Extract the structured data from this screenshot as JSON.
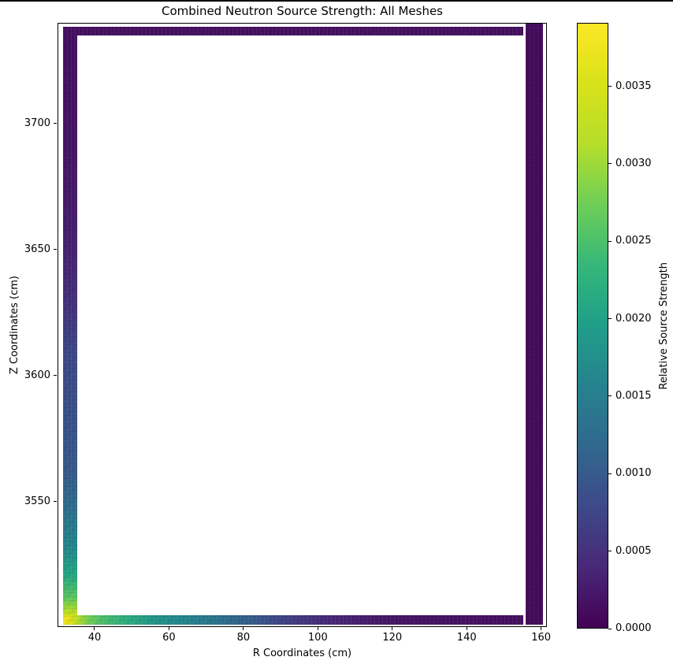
{
  "title": "Combined Neutron Source Strength: All Meshes",
  "x_axis": {
    "label": "R Coordinates (cm)",
    "ticks": [
      "40",
      "60",
      "80",
      "100",
      "120",
      "140",
      "160"
    ]
  },
  "y_axis": {
    "label": "Z Coordinates (cm)",
    "ticks": [
      "3700",
      "3650",
      "3600",
      "3550"
    ]
  },
  "colorbar": {
    "label": "Relative Source Strength",
    "ticks": [
      "0.0035",
      "0.0030",
      "0.0025",
      "0.0020",
      "0.0015",
      "0.0010",
      "0.0005",
      "0.0000"
    ]
  },
  "chart_data": {
    "type": "heatmap",
    "subtype": "pcolormesh of mesh cells forming a hollow rectangular frame on white background",
    "title": "Combined Neutron Source Strength: All Meshes",
    "xlabel": "R Coordinates (cm)",
    "ylabel": "Z Coordinates (cm)",
    "xlim": [
      30.05,
      161.55
    ],
    "ylim": [
      3500.3,
      3740.0
    ],
    "x_ticks": [
      40,
      60,
      80,
      100,
      120,
      140,
      160
    ],
    "y_ticks": [
      3700,
      3650,
      3600,
      3550
    ],
    "colormap": "viridis",
    "grid": false,
    "colorbar": {
      "label": "Relative Source Strength",
      "vmin": 0.0,
      "vmax": 0.00391,
      "ticks": [
        0.0035,
        0.003,
        0.0025,
        0.002,
        0.0015,
        0.001,
        0.0005,
        0.0
      ]
    },
    "regions": [
      {
        "name": "left-wall",
        "r": [
          31.53,
          35.34
        ],
        "z": [
          3501.2,
          3738.5
        ],
        "gradient_axis": "z",
        "profile": {
          "z": [
            3501.5,
            3504.0,
            3507.0,
            3512.0,
            3521.0,
            3533.0,
            3549.0,
            3562.0,
            3583.0,
            3608.0,
            3630.0,
            3655.0,
            3690.0,
            3715.0,
            3738.0
          ],
          "value": [
            0.0038,
            0.0035,
            0.0031,
            0.0026,
            0.0021,
            0.0016,
            0.00125,
            0.001,
            0.0009,
            0.0008,
            0.0005,
            0.0003,
            0.0002,
            0.00017,
            0.00015
          ]
        }
      },
      {
        "name": "bottom-wall",
        "r": [
          31.53,
          155.3
        ],
        "z": [
          3501.2,
          3505.0
        ],
        "gradient_axis": "r",
        "profile": {
          "r": [
            31.8,
            33.5,
            35.0,
            38.0,
            42.0,
            48.5,
            57.0,
            65.0,
            74.0,
            82.0,
            91.0,
            103.0,
            120.0,
            140.0,
            155.0
          ],
          "value": [
            0.0038,
            0.0036,
            0.0033,
            0.0028,
            0.0025,
            0.0022,
            0.0018,
            0.0016,
            0.0013,
            0.00105,
            0.0007,
            0.0004,
            0.0002,
            0.00017,
            0.00015
          ]
        }
      },
      {
        "name": "top-wall",
        "r": [
          31.53,
          155.3
        ],
        "z": [
          3734.9,
          3738.5
        ],
        "value": 0.00015
      },
      {
        "name": "right-wall",
        "r": [
          155.8,
          160.5
        ],
        "z": [
          3501.2,
          3739.7
        ],
        "value": 0.0001
      }
    ]
  }
}
